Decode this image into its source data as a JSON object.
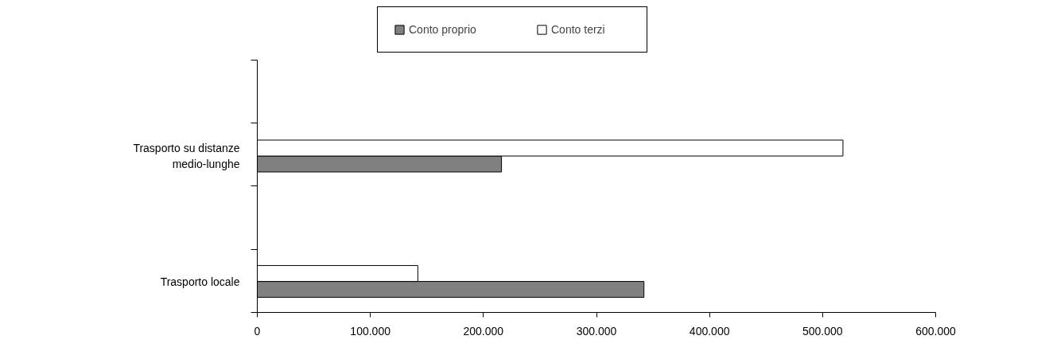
{
  "chart_data": {
    "type": "bar",
    "orientation": "horizontal",
    "categories": [
      "Trasporto su distanze medio-lunghe",
      "Trasporto locale"
    ],
    "series": [
      {
        "name": "Conto proprio",
        "color": "#808080",
        "values": [
          216000,
          342000
        ]
      },
      {
        "name": "Conto terzi",
        "color": "#ffffff",
        "values": [
          518000,
          142000
        ]
      }
    ],
    "xlim": [
      0,
      600000
    ],
    "xticks": [
      0,
      {
        "value": 100000,
        "label": "100.000"
      },
      {
        "value": 200000,
        "label": "200.000"
      },
      {
        "value": 300000,
        "label": "300.000"
      },
      {
        "value": 400000,
        "label": "400.000"
      },
      {
        "value": 500000,
        "label": "500.000"
      },
      {
        "value": 600000,
        "label": "600.000"
      }
    ],
    "grid": false,
    "legend": "top"
  }
}
